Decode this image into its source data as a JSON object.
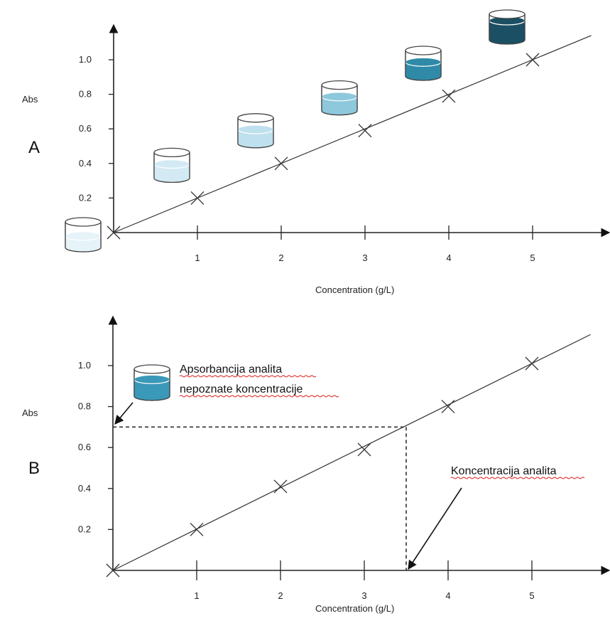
{
  "chart_data": [
    {
      "panel": "A",
      "type": "line",
      "xlabel": "Concentration (g/L)",
      "ylabel": "Abs",
      "xlim": [
        0,
        5.7
      ],
      "ylim": [
        0,
        1.2
      ],
      "x_ticks": [
        "1",
        "2",
        "3",
        "4",
        "5"
      ],
      "y_ticks": [
        "0.2",
        "0.4",
        "0.6",
        "0.8",
        "1.0"
      ],
      "series": [
        {
          "x": [
            0,
            1,
            2,
            3,
            4,
            5
          ],
          "y": [
            0,
            0.2,
            0.4,
            0.59,
            0.79,
            1.0
          ]
        }
      ],
      "cuvettes": [
        {
          "x": 0,
          "fill_color": "#e6f3f9",
          "fill_level": 0.45
        },
        {
          "x": 1,
          "fill_color": "#d3eaf4",
          "fill_level": 0.55
        },
        {
          "x": 2,
          "fill_color": "#bfe0ee",
          "fill_level": 0.55
        },
        {
          "x": 3,
          "fill_color": "#8ec8dc",
          "fill_level": 0.55
        },
        {
          "x": 4,
          "fill_color": "#2f8aa8",
          "fill_level": 0.55
        },
        {
          "x": 5,
          "fill_color": "#1b4f63",
          "fill_level": 0.75
        }
      ]
    },
    {
      "panel": "B",
      "type": "line",
      "xlabel": "Concentration (g/L)",
      "ylabel": "Abs",
      "xlim": [
        0,
        5.7
      ],
      "ylim": [
        0,
        1.2
      ],
      "x_ticks": [
        "1",
        "2",
        "3",
        "4",
        "5"
      ],
      "y_ticks": [
        "0.2",
        "0.4",
        "0.6",
        "0.8",
        "1.0"
      ],
      "series": [
        {
          "x": [
            0,
            1,
            2,
            3,
            4,
            5
          ],
          "y": [
            0,
            0.2,
            0.41,
            0.59,
            0.8,
            1.01
          ]
        }
      ],
      "unknown_sample": {
        "abs": 0.7,
        "concentration": 3.5,
        "fill_color": "#3a98b8"
      },
      "annotations": [
        {
          "text": "Apsorbancija analita\nnepoznate koncentracije",
          "points_to": "y-axis at 0.7"
        },
        {
          "text": "Koncentracija analita",
          "points_to": "x-axis at 3.5"
        }
      ]
    }
  ],
  "panels": {
    "a": {
      "letter": "A"
    },
    "b": {
      "letter": "B"
    }
  },
  "annotations": {
    "absorbance_line1": "Apsorbancija analita",
    "absorbance_line2": "nepoznate koncentracije",
    "concentration": "Koncentracija analita"
  }
}
